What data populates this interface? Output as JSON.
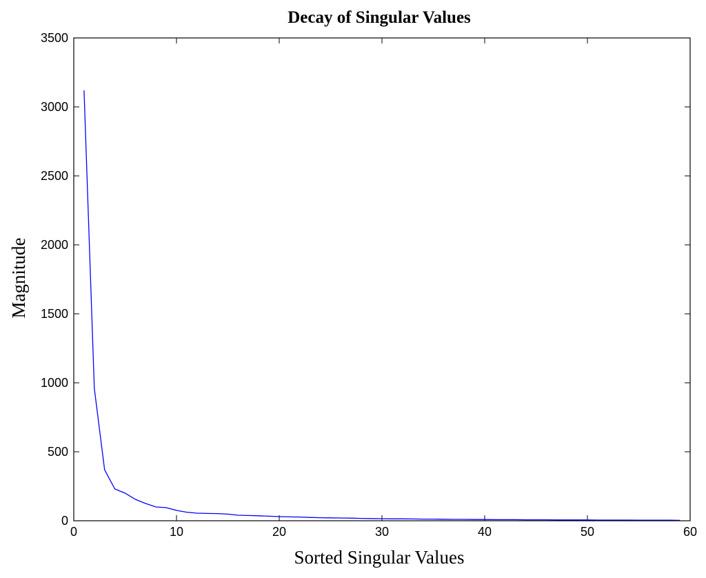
{
  "chart_data": {
    "type": "line",
    "title": "Decay of Singular Values",
    "xlabel": "Sorted Singular Values",
    "ylabel": "Magnitude",
    "xlim": [
      0,
      60
    ],
    "ylim": [
      0,
      3500
    ],
    "xticks": [
      0,
      10,
      20,
      30,
      40,
      50,
      60
    ],
    "yticks": [
      0,
      500,
      1000,
      1500,
      2000,
      2500,
      3000,
      3500
    ],
    "grid": false,
    "series": [
      {
        "color": "#0000ff",
        "x": [
          1,
          2,
          3,
          4,
          5,
          6,
          7,
          8,
          9,
          10,
          11,
          12,
          13,
          14,
          15,
          16,
          17,
          18,
          19,
          20,
          21,
          22,
          23,
          24,
          25,
          26,
          27,
          28,
          29,
          30,
          31,
          32,
          33,
          34,
          35,
          36,
          37,
          38,
          39,
          40,
          41,
          42,
          43,
          44,
          45,
          46,
          47,
          48,
          49,
          50,
          51,
          52,
          53,
          54,
          55,
          56,
          57,
          58,
          59
        ],
        "y": [
          3120,
          960,
          370,
          230,
          200,
          155,
          125,
          100,
          95,
          75,
          62,
          55,
          53,
          52,
          48,
          40,
          38,
          36,
          33,
          30,
          28,
          27,
          24,
          22,
          21,
          20,
          19,
          17,
          16,
          15,
          14,
          14,
          13,
          12,
          12,
          11,
          10,
          10,
          9,
          9,
          8,
          8,
          8,
          7,
          7,
          7,
          6,
          6,
          6,
          6,
          5,
          5,
          5,
          5,
          4,
          4,
          4,
          4,
          3
        ]
      }
    ]
  }
}
